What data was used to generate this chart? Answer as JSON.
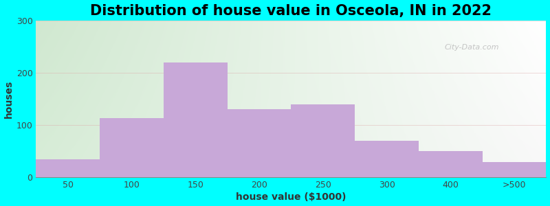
{
  "title": "Distribution of house value in Osceola, IN in 2022",
  "xlabel": "house value ($1000)",
  "ylabel": "houses",
  "bar_labels": [
    "50",
    "100",
    "150",
    "200",
    "250",
    "300",
    "400",
    ">500"
  ],
  "bar_heights": [
    35,
    113,
    220,
    130,
    140,
    70,
    50,
    30
  ],
  "bar_color": "#C8A8D8",
  "bg_outer": "#00FFFF",
  "bg_gradient_left": "#d8edd8",
  "bg_gradient_right": "#f8f8f8",
  "ylim": [
    0,
    300
  ],
  "yticks": [
    0,
    100,
    200,
    300
  ],
  "title_fontsize": 15,
  "axis_label_fontsize": 10,
  "tick_fontsize": 9,
  "watermark": "City-Data.com"
}
